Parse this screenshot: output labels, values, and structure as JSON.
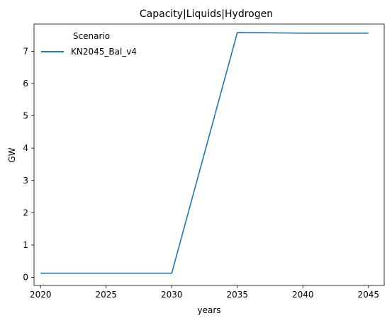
{
  "chart_data": {
    "type": "line",
    "title": "Capacity|Liquids|Hydrogen",
    "xlabel": "years",
    "ylabel": "GW",
    "xlim": [
      2019.5,
      2046.2
    ],
    "ylim": [
      -0.25,
      7.84
    ],
    "xticks": [
      2020,
      2025,
      2030,
      2035,
      2040,
      2045
    ],
    "yticks": [
      0,
      1,
      2,
      3,
      4,
      5,
      6,
      7
    ],
    "grid": false,
    "legend": {
      "title": "Scenario",
      "placement": "top-left"
    },
    "series": [
      {
        "name": "KN2045_Bal_v4",
        "color": "#1f77b4",
        "x": [
          2020,
          2025,
          2030,
          2035,
          2040,
          2045
        ],
        "y": [
          0.13,
          0.13,
          0.13,
          7.58,
          7.56,
          7.56
        ]
      }
    ]
  }
}
